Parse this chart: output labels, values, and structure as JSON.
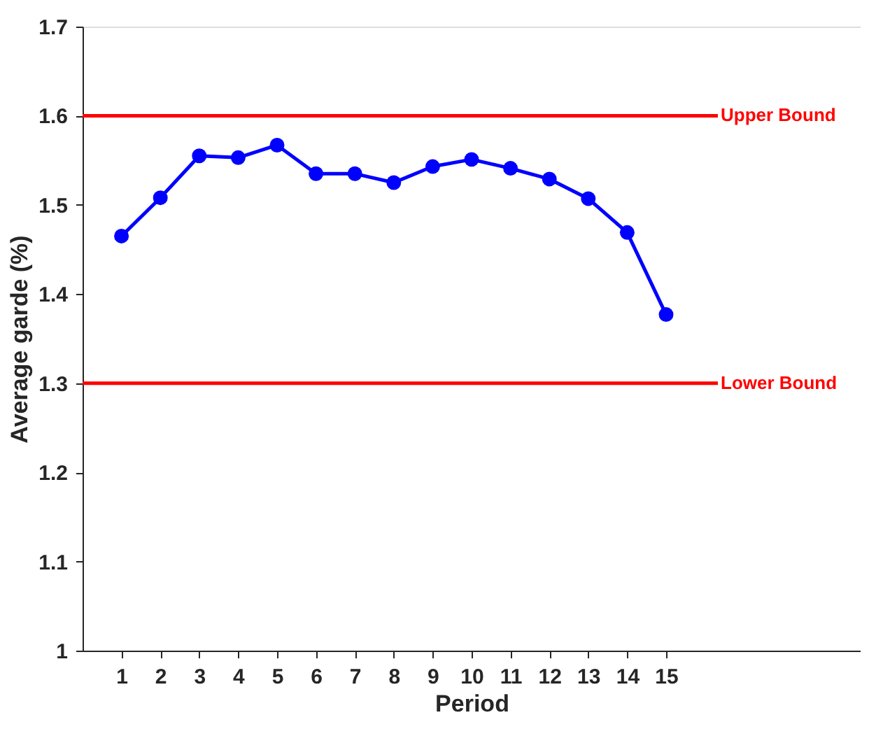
{
  "chart_data": {
    "type": "line",
    "xlabel": "Period",
    "ylabel": "Average garde (%)",
    "x": [
      1,
      2,
      3,
      4,
      5,
      6,
      7,
      8,
      9,
      10,
      11,
      12,
      13,
      14,
      15
    ],
    "series": [
      {
        "color": "#0000ff",
        "values": [
          1.465,
          1.508,
          1.555,
          1.553,
          1.567,
          1.535,
          1.535,
          1.525,
          1.543,
          1.551,
          1.541,
          1.529,
          1.507,
          1.469,
          1.377
        ]
      }
    ],
    "marker": "circle",
    "line_style": "solid",
    "xlim": [
      0,
      20
    ],
    "xticks": [
      1,
      2,
      3,
      4,
      5,
      6,
      7,
      8,
      9,
      10,
      11,
      12,
      13,
      14,
      15
    ],
    "ylim": [
      1,
      1.7
    ],
    "yticks": [
      1,
      1.1,
      1.2,
      1.3,
      1.4,
      1.5,
      1.6,
      1.7
    ],
    "ref_lines": [
      {
        "axis": "y",
        "value": 1.6,
        "label": "Upper Bound",
        "color": "#ff0000"
      },
      {
        "axis": "y",
        "value": 1.3,
        "label": "Lower Bound",
        "color": "#ff0000"
      }
    ],
    "grid": false
  }
}
